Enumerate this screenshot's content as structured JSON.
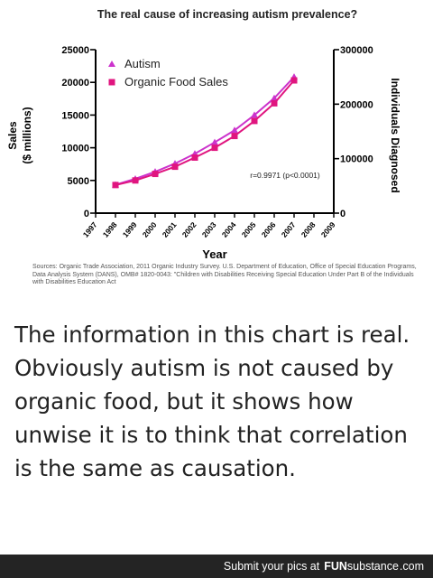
{
  "chart_data": {
    "type": "line",
    "title": "The real cause of increasing autism prevalence?",
    "xlabel": "Year",
    "ylabel_left_line1": "Sales",
    "ylabel_left_line2": "($ millions)",
    "ylabel_right": "Individuals Diagnosed",
    "categories": [
      "1997",
      "1998",
      "1999",
      "2000",
      "2001",
      "2002",
      "2003",
      "2004",
      "2005",
      "2006",
      "2007",
      "2008",
      "2009"
    ],
    "ylim_left": [
      0,
      25000
    ],
    "ylim_right": [
      0,
      300000
    ],
    "yticks_left": [
      "0",
      "5000",
      "10000",
      "15000",
      "20000",
      "25000"
    ],
    "yticks_right": [
      "0",
      "100000",
      "200000",
      "300000"
    ],
    "series": [
      {
        "name": "Autism",
        "axis": "right",
        "marker": "triangle",
        "color": "#cc33cc",
        "x": [
          "1998",
          "1999",
          "2000",
          "2001",
          "2002",
          "2003",
          "2004",
          "2005",
          "2006",
          "2007"
        ],
        "values": [
          52000,
          63000,
          76000,
          91000,
          109000,
          130000,
          152000,
          180000,
          211000,
          250000
        ]
      },
      {
        "name": "Organic Food Sales",
        "axis": "left",
        "marker": "square",
        "color": "#e0157f",
        "x": [
          "1998",
          "1999",
          "2000",
          "2001",
          "2002",
          "2003",
          "2004",
          "2005",
          "2006",
          "2007"
        ],
        "values": [
          4300,
          5000,
          6000,
          7100,
          8500,
          10000,
          11800,
          14100,
          16800,
          20300
        ]
      }
    ],
    "annotation": "r=0.9971 (p<0.0001)",
    "legend_position": "top-left",
    "grid": false
  },
  "sources_text": "Sources: Organic Trade Association, 2011 Organic Industry Survey. U.S. Department of Education, Office of Special Education Programs, Data Analysis System (DANS), OMB# 1820-0043: \"Children with Disabilities Receiving Special Education Under Part B of the Individuals with Disabilities Education Act",
  "caption": "The information in this chart is real. Obviously autism is not caused by organic food, but it shows how unwise it is to think that correlation is the same as causation.",
  "footer": {
    "text": "Submit your pics at",
    "brand_bold": "FUN",
    "brand_light": "substance",
    "tld": ".com"
  },
  "colors": {
    "autism": "#cc33cc",
    "organic": "#e0157f",
    "footer_bg": "#242424"
  }
}
